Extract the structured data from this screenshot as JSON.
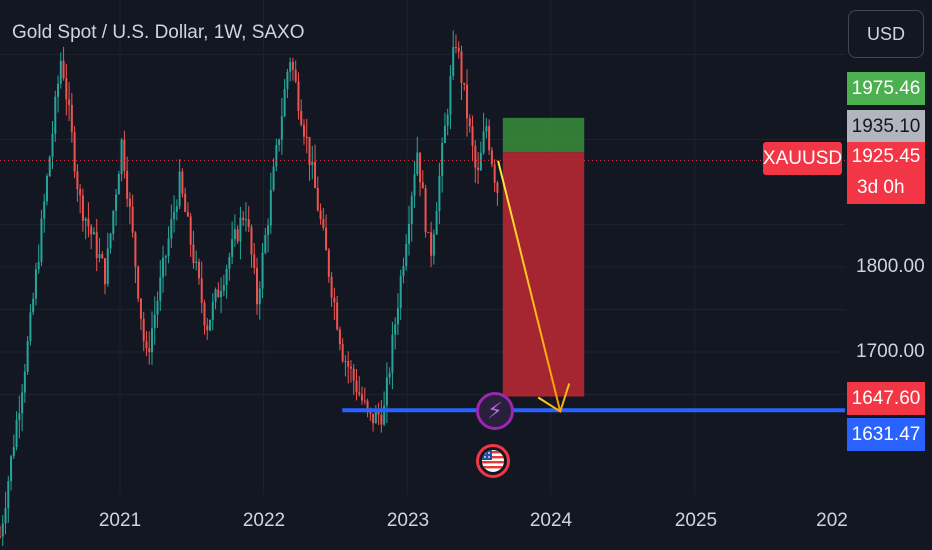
{
  "header": {
    "title": "Gold Spot / U.S. Dollar, 1W, SAXO",
    "currency": "USD"
  },
  "colors": {
    "background": "#131722",
    "up": "#26a69a",
    "down": "#ef5350",
    "support_line": "#2962ff",
    "target_zone": "#388e3c",
    "stop_zone": "#b22833",
    "arrow": "#ff9800"
  },
  "price_tags": {
    "target": "1975.46",
    "entry": "1935.10",
    "symbol": "XAUUSD",
    "last": "1925.45",
    "countdown": "3d 0h",
    "stop": "1647.60",
    "support": "1631.47"
  },
  "y_axis": {
    "ticks": [
      "1800.00",
      "1700.00"
    ]
  },
  "x_axis": {
    "ticks": [
      "2021",
      "2022",
      "2023",
      "2024",
      "2025",
      "202"
    ]
  },
  "icons": {
    "event": "lightning-icon",
    "flag": "us-flag-icon"
  },
  "chart_data": {
    "type": "candlestick",
    "title": "Gold Spot / U.S. Dollar, 1W, SAXO",
    "interval": "1W",
    "ylim": [
      1585,
      2095
    ],
    "xlim": [
      "2020-01-01",
      "2025-12-01"
    ],
    "grid": true,
    "close_path": [
      [
        "2020-03-01",
        1480
      ],
      [
        "2020-05-15",
        1720
      ],
      [
        "2020-08-05",
        2050
      ],
      [
        "2020-09-20",
        1880
      ],
      [
        "2020-11-25",
        1790
      ],
      [
        "2021-01-06",
        1950
      ],
      [
        "2021-03-08",
        1690
      ],
      [
        "2021-06-01",
        1900
      ],
      [
        "2021-08-09",
        1730
      ],
      [
        "2021-11-16",
        1870
      ],
      [
        "2021-12-15",
        1760
      ],
      [
        "2022-03-08",
        2050
      ],
      [
        "2022-04-20",
        1950
      ],
      [
        "2022-07-21",
        1700
      ],
      [
        "2022-09-28",
        1620
      ],
      [
        "2022-11-03",
        1630
      ],
      [
        "2023-01-26",
        1940
      ],
      [
        "2023-02-28",
        1810
      ],
      [
        "2023-05-04",
        2070
      ],
      [
        "2023-06-28",
        1900
      ],
      [
        "2023-07-20",
        1970
      ],
      [
        "2023-08-18",
        1890
      ],
      [
        "2023-08-25",
        1925
      ]
    ],
    "position": {
      "target": 1975.46,
      "entry": 1935.1,
      "stop": 1647.6
    },
    "last_price": 1925.45,
    "support": 1631.47
  }
}
